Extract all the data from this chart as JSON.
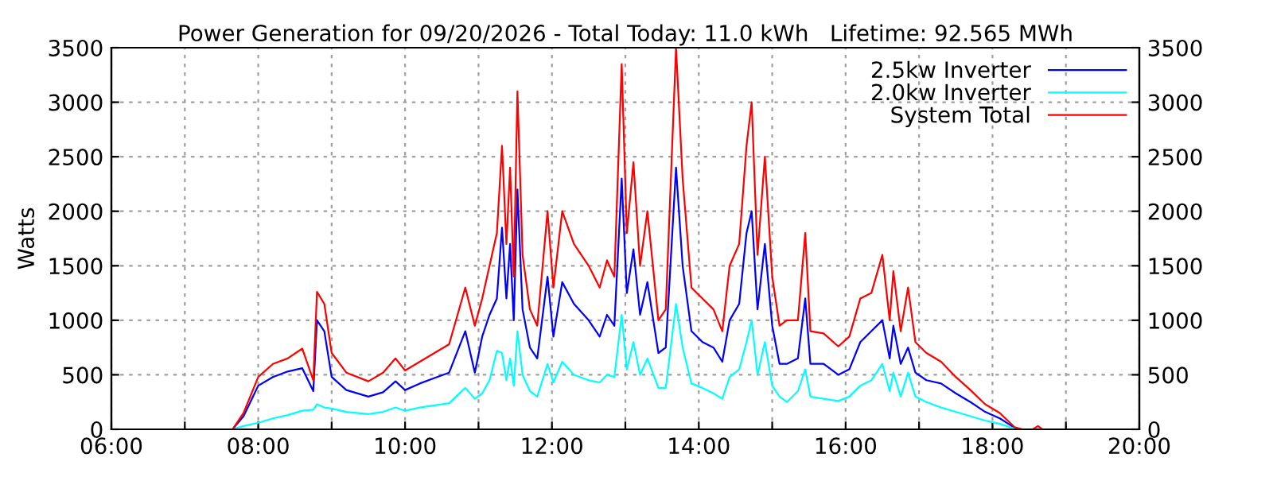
{
  "chart_data": {
    "type": "line",
    "title": "Power Generation for 09/20/2026 - Total Today: 11.0 kWh   Lifetime: 92.565 MWh",
    "ylabel": "Watts",
    "x": [
      7.5,
      7.65,
      7.8,
      8.0,
      8.2,
      8.4,
      8.6,
      8.75,
      8.8,
      8.9,
      9.0,
      9.2,
      9.5,
      9.7,
      9.87,
      10.0,
      10.2,
      10.4,
      10.6,
      10.82,
      10.95,
      11.05,
      11.15,
      11.25,
      11.32,
      11.38,
      11.43,
      11.48,
      11.53,
      11.6,
      11.7,
      11.8,
      11.94,
      12.02,
      12.14,
      12.3,
      12.5,
      12.65,
      12.75,
      12.85,
      12.95,
      13.02,
      13.11,
      13.2,
      13.3,
      13.45,
      13.55,
      13.69,
      13.78,
      13.9,
      14.05,
      14.2,
      14.32,
      14.42,
      14.55,
      14.65,
      14.72,
      14.8,
      14.9,
      15.0,
      15.1,
      15.2,
      15.35,
      15.45,
      15.52,
      15.7,
      15.9,
      16.05,
      16.2,
      16.35,
      16.5,
      16.6,
      16.65,
      16.75,
      16.85,
      16.95,
      17.1,
      17.3,
      17.5,
      17.7,
      17.9,
      18.1,
      18.3,
      18.4,
      18.55,
      18.62,
      18.68
    ],
    "series": [
      {
        "name": "2.5kw Inverter",
        "color": "#0000ff",
        "values": [
          null,
          0,
          120,
          400,
          480,
          530,
          560,
          350,
          1000,
          900,
          480,
          360,
          300,
          340,
          440,
          360,
          420,
          470,
          520,
          900,
          520,
          850,
          1050,
          1200,
          1850,
          1200,
          1700,
          1000,
          2200,
          1100,
          750,
          650,
          1400,
          850,
          1350,
          1150,
          1000,
          850,
          1050,
          950,
          2300,
          1250,
          1650,
          1050,
          1350,
          700,
          750,
          2400,
          1500,
          900,
          800,
          750,
          620,
          1000,
          1150,
          1800,
          2000,
          1100,
          1700,
          950,
          600,
          600,
          650,
          1200,
          600,
          600,
          500,
          550,
          800,
          900,
          1000,
          650,
          950,
          600,
          750,
          520,
          450,
          420,
          330,
          250,
          160,
          100,
          15,
          0,
          null,
          null,
          null
        ]
      },
      {
        "name": "2.0kw Inverter",
        "color": "#00ffff",
        "values": [
          null,
          0,
          30,
          60,
          100,
          130,
          170,
          180,
          230,
          200,
          190,
          160,
          140,
          160,
          200,
          170,
          200,
          220,
          240,
          380,
          280,
          330,
          450,
          720,
          700,
          450,
          650,
          400,
          900,
          500,
          350,
          300,
          600,
          430,
          620,
          500,
          450,
          430,
          500,
          480,
          1050,
          550,
          800,
          500,
          650,
          380,
          380,
          1150,
          750,
          420,
          380,
          330,
          280,
          480,
          550,
          800,
          1000,
          500,
          800,
          400,
          300,
          250,
          350,
          550,
          300,
          280,
          260,
          300,
          400,
          450,
          600,
          350,
          520,
          300,
          520,
          300,
          250,
          200,
          160,
          120,
          80,
          50,
          5,
          0,
          null,
          null,
          null
        ]
      },
      {
        "name": "System Total",
        "color": "#ff0000",
        "values": [
          0,
          0,
          150,
          480,
          600,
          650,
          740,
          450,
          1260,
          1150,
          700,
          520,
          440,
          520,
          650,
          540,
          620,
          700,
          780,
          1300,
          950,
          1200,
          1500,
          1800,
          2600,
          1700,
          2400,
          1400,
          3100,
          1600,
          1100,
          950,
          2000,
          1300,
          2000,
          1700,
          1500,
          1300,
          1550,
          1400,
          3350,
          1800,
          2450,
          1500,
          2000,
          1000,
          1100,
          3500,
          2300,
          1300,
          1200,
          1100,
          900,
          1500,
          1700,
          2600,
          3000,
          1600,
          2500,
          1400,
          950,
          1000,
          1000,
          1800,
          900,
          880,
          760,
          850,
          1200,
          1250,
          1600,
          1000,
          1450,
          900,
          1300,
          800,
          700,
          620,
          480,
          360,
          230,
          150,
          20,
          0,
          0,
          30,
          0
        ]
      }
    ],
    "xlim": [
      6,
      20
    ],
    "xticks": [
      {
        "value": 6,
        "label": "06:00"
      },
      {
        "value": 7,
        "label": null
      },
      {
        "value": 8,
        "label": "08:00"
      },
      {
        "value": 9,
        "label": null
      },
      {
        "value": 10,
        "label": "10:00"
      },
      {
        "value": 11,
        "label": null
      },
      {
        "value": 12,
        "label": "12:00"
      },
      {
        "value": 13,
        "label": null
      },
      {
        "value": 14,
        "label": "14:00"
      },
      {
        "value": 15,
        "label": null
      },
      {
        "value": 16,
        "label": "16:00"
      },
      {
        "value": 17,
        "label": null
      },
      {
        "value": 18,
        "label": "18:00"
      },
      {
        "value": 19,
        "label": null
      },
      {
        "value": 20,
        "label": "20:00"
      }
    ],
    "ylim": [
      0,
      3500
    ],
    "yticks": [
      0,
      500,
      1000,
      1500,
      2000,
      2500,
      3000,
      3500
    ],
    "y2lim": [
      0,
      3500
    ],
    "y2ticks": [
      0,
      500,
      1000,
      1500,
      2000,
      2500,
      3000,
      3500
    ],
    "grid": true,
    "legend": "top right",
    "line_style": "solid",
    "marker": "none"
  }
}
